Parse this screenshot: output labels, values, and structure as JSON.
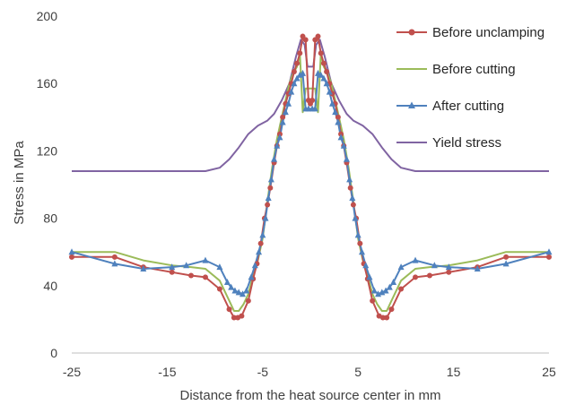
{
  "chart_data": {
    "type": "line",
    "xlabel": "Distance from the heat source center in mm",
    "ylabel": "Stress in MPa",
    "xlim": [
      -25,
      25
    ],
    "ylim": [
      0,
      200
    ],
    "xticks": [
      -25,
      -15,
      -5,
      5,
      15,
      25
    ],
    "yticks": [
      0,
      40,
      80,
      120,
      160,
      200
    ],
    "grid": false,
    "legend": "top-right",
    "series": [
      {
        "name": "Before unclamping",
        "color": "#c0504d",
        "marker": "circle",
        "points": [
          [
            -25,
            57
          ],
          [
            -20.5,
            57
          ],
          [
            -17.5,
            51
          ],
          [
            -14.5,
            48
          ],
          [
            -12.5,
            46
          ],
          [
            -11,
            45
          ],
          [
            -9.5,
            38
          ],
          [
            -8.5,
            26
          ],
          [
            -8,
            21
          ],
          [
            -7.6,
            21
          ],
          [
            -7.2,
            22
          ],
          [
            -6.5,
            31
          ],
          [
            -6,
            44
          ],
          [
            -5.6,
            53
          ],
          [
            -5.2,
            65
          ],
          [
            -4.8,
            80
          ],
          [
            -4.5,
            88
          ],
          [
            -4.2,
            98
          ],
          [
            -3.8,
            113
          ],
          [
            -3.5,
            123
          ],
          [
            -3.2,
            130
          ],
          [
            -2.9,
            140
          ],
          [
            -2.6,
            148
          ],
          [
            -2.3,
            154
          ],
          [
            -2,
            160
          ],
          [
            -1.7,
            167
          ],
          [
            -1.4,
            172
          ],
          [
            -1.1,
            178
          ],
          [
            -0.8,
            188
          ],
          [
            -0.5,
            186
          ],
          [
            -0.2,
            150
          ],
          [
            0,
            148
          ],
          [
            0.2,
            150
          ],
          [
            0.5,
            186
          ],
          [
            0.8,
            188
          ],
          [
            1.1,
            178
          ],
          [
            1.4,
            172
          ],
          [
            1.7,
            167
          ],
          [
            2,
            160
          ],
          [
            2.3,
            154
          ],
          [
            2.6,
            148
          ],
          [
            2.9,
            140
          ],
          [
            3.2,
            130
          ],
          [
            3.5,
            123
          ],
          [
            3.8,
            113
          ],
          [
            4.2,
            98
          ],
          [
            4.5,
            88
          ],
          [
            4.8,
            80
          ],
          [
            5.2,
            65
          ],
          [
            5.6,
            53
          ],
          [
            6,
            44
          ],
          [
            6.5,
            31
          ],
          [
            7.2,
            22
          ],
          [
            7.6,
            21
          ],
          [
            8,
            21
          ],
          [
            8.5,
            26
          ],
          [
            9.5,
            38
          ],
          [
            11,
            45
          ],
          [
            12.5,
            46
          ],
          [
            14.5,
            48
          ],
          [
            17.5,
            51
          ],
          [
            20.5,
            57
          ],
          [
            25,
            57
          ]
        ]
      },
      {
        "name": "Before cutting",
        "color": "#9bbb59",
        "marker": "none",
        "points": [
          [
            -25,
            60
          ],
          [
            -20.5,
            60
          ],
          [
            -17.5,
            55
          ],
          [
            -14.5,
            52
          ],
          [
            -12.5,
            51
          ],
          [
            -11,
            50
          ],
          [
            -9.5,
            43
          ],
          [
            -8.5,
            31
          ],
          [
            -8,
            25
          ],
          [
            -7.5,
            25
          ],
          [
            -7,
            29
          ],
          [
            -6.5,
            35
          ],
          [
            -6,
            46
          ],
          [
            -5.5,
            55
          ],
          [
            -5,
            68
          ],
          [
            -4.5,
            90
          ],
          [
            -4,
            110
          ],
          [
            -3.5,
            127
          ],
          [
            -3,
            140
          ],
          [
            -2.6,
            150
          ],
          [
            -2.2,
            160
          ],
          [
            -1.8,
            166
          ],
          [
            -1.4,
            170
          ],
          [
            -1.1,
            178
          ],
          [
            -0.8,
            143
          ],
          [
            -0.5,
            157
          ],
          [
            0,
            157
          ],
          [
            0.5,
            157
          ],
          [
            0.8,
            143
          ],
          [
            1.1,
            178
          ],
          [
            1.4,
            170
          ],
          [
            1.8,
            166
          ],
          [
            2.2,
            160
          ],
          [
            2.6,
            150
          ],
          [
            3,
            140
          ],
          [
            3.5,
            127
          ],
          [
            4,
            110
          ],
          [
            4.5,
            90
          ],
          [
            5,
            68
          ],
          [
            5.5,
            55
          ],
          [
            6,
            46
          ],
          [
            6.5,
            35
          ],
          [
            7,
            29
          ],
          [
            7.5,
            25
          ],
          [
            8,
            25
          ],
          [
            8.5,
            31
          ],
          [
            9.5,
            43
          ],
          [
            11,
            50
          ],
          [
            12.5,
            51
          ],
          [
            14.5,
            52
          ],
          [
            17.5,
            55
          ],
          [
            20.5,
            60
          ],
          [
            25,
            60
          ]
        ]
      },
      {
        "name": "After cutting",
        "color": "#4f81bd",
        "marker": "triangle",
        "points": [
          [
            -25,
            60
          ],
          [
            -20.5,
            53
          ],
          [
            -17.5,
            50
          ],
          [
            -14.5,
            51
          ],
          [
            -13,
            52
          ],
          [
            -11,
            55
          ],
          [
            -9.5,
            51
          ],
          [
            -8.7,
            42
          ],
          [
            -8.3,
            39
          ],
          [
            -7.9,
            37
          ],
          [
            -7.5,
            36
          ],
          [
            -7.1,
            35
          ],
          [
            -6.7,
            37
          ],
          [
            -6.2,
            45
          ],
          [
            -5.8,
            52
          ],
          [
            -5.4,
            60
          ],
          [
            -5,
            70
          ],
          [
            -4.7,
            80
          ],
          [
            -4.4,
            92
          ],
          [
            -4.1,
            103
          ],
          [
            -3.8,
            115
          ],
          [
            -3.5,
            123
          ],
          [
            -3.2,
            128
          ],
          [
            -2.9,
            137
          ],
          [
            -2.6,
            143
          ],
          [
            -2.3,
            148
          ],
          [
            -2,
            155
          ],
          [
            -1.7,
            160
          ],
          [
            -1.4,
            163
          ],
          [
            -1.1,
            165
          ],
          [
            -0.8,
            166
          ],
          [
            -0.5,
            145
          ],
          [
            -0.2,
            145
          ],
          [
            0.2,
            145
          ],
          [
            0.5,
            145
          ],
          [
            0.8,
            166
          ],
          [
            1.1,
            165
          ],
          [
            1.4,
            163
          ],
          [
            1.7,
            160
          ],
          [
            2,
            155
          ],
          [
            2.3,
            148
          ],
          [
            2.6,
            143
          ],
          [
            2.9,
            137
          ],
          [
            3.2,
            128
          ],
          [
            3.5,
            123
          ],
          [
            3.8,
            115
          ],
          [
            4.1,
            103
          ],
          [
            4.4,
            92
          ],
          [
            4.7,
            80
          ],
          [
            5,
            70
          ],
          [
            5.4,
            60
          ],
          [
            5.8,
            52
          ],
          [
            6.2,
            45
          ],
          [
            6.7,
            37
          ],
          [
            7.1,
            35
          ],
          [
            7.5,
            36
          ],
          [
            7.9,
            37
          ],
          [
            8.3,
            39
          ],
          [
            8.7,
            42
          ],
          [
            9.5,
            51
          ],
          [
            11,
            55
          ],
          [
            13,
            52
          ],
          [
            14.5,
            51
          ],
          [
            17.5,
            50
          ],
          [
            20.5,
            53
          ],
          [
            25,
            60
          ]
        ]
      },
      {
        "name": "Yield stress",
        "color": "#8064a2",
        "marker": "none",
        "points": [
          [
            -25,
            108
          ],
          [
            -11,
            108
          ],
          [
            -9.5,
            110
          ],
          [
            -8.5,
            115
          ],
          [
            -7.5,
            122
          ],
          [
            -6.5,
            130
          ],
          [
            -5.5,
            135
          ],
          [
            -4.5,
            138
          ],
          [
            -3.8,
            142
          ],
          [
            -3,
            150
          ],
          [
            -2.2,
            160
          ],
          [
            -1.5,
            176
          ],
          [
            -1,
            186
          ],
          [
            -0.6,
            183
          ],
          [
            -0.3,
            170
          ],
          [
            0.3,
            170
          ],
          [
            0.6,
            183
          ],
          [
            1,
            186
          ],
          [
            1.5,
            176
          ],
          [
            2.2,
            160
          ],
          [
            3,
            150
          ],
          [
            3.8,
            142
          ],
          [
            4.5,
            138
          ],
          [
            5.5,
            135
          ],
          [
            6.5,
            130
          ],
          [
            7.5,
            122
          ],
          [
            8.5,
            115
          ],
          [
            9.5,
            110
          ],
          [
            11,
            108
          ],
          [
            25,
            108
          ]
        ]
      }
    ]
  }
}
